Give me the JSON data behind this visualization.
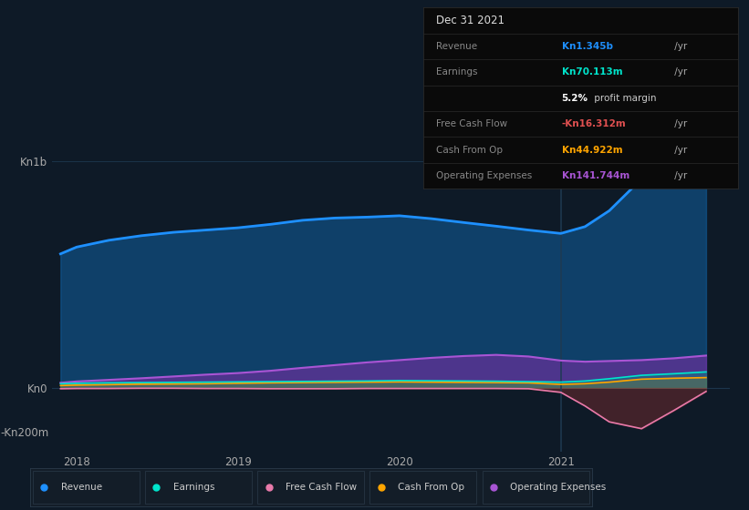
{
  "bg_color": "#0e1a27",
  "plot_bg_color": "#0e1a27",
  "info_box": {
    "title": "Dec 31 2021",
    "rows": [
      {
        "label": "Revenue",
        "value": "Kn1.345b",
        "suffix": " /yr",
        "value_color": "#1e90ff"
      },
      {
        "label": "Earnings",
        "value": "Kn70.113m",
        "suffix": " /yr",
        "value_color": "#00e5cc"
      },
      {
        "label": "",
        "value": "5.2%",
        "suffix": " profit margin",
        "value_color": "#ffffff"
      },
      {
        "label": "Free Cash Flow",
        "value": "-Kn16.312m",
        "suffix": " /yr",
        "value_color": "#e05050"
      },
      {
        "label": "Cash From Op",
        "value": "Kn44.922m",
        "suffix": " /yr",
        "value_color": "#ffa500"
      },
      {
        "label": "Operating Expenses",
        "value": "Kn141.744m",
        "suffix": " /yr",
        "value_color": "#a855d4"
      }
    ],
    "bg_color": "#0a0a0a",
    "border_color": "#2a2a2a",
    "title_color": "#dddddd",
    "label_color": "#888888"
  },
  "legend": [
    {
      "label": "Revenue",
      "color": "#1e90ff"
    },
    {
      "label": "Earnings",
      "color": "#00e5cc"
    },
    {
      "label": "Free Cash Flow",
      "color": "#e87aaa"
    },
    {
      "label": "Cash From Op",
      "color": "#ffa500"
    },
    {
      "label": "Operating Expenses",
      "color": "#a855d4"
    }
  ],
  "x_ticks": [
    2018,
    2019,
    2020,
    2021
  ],
  "ylim_top": 1450,
  "ylim_bottom": -280,
  "series": {
    "x": [
      2017.9,
      2018.0,
      2018.2,
      2018.4,
      2018.6,
      2018.8,
      2019.0,
      2019.2,
      2019.4,
      2019.6,
      2019.8,
      2020.0,
      2020.2,
      2020.4,
      2020.6,
      2020.8,
      2021.0,
      2021.15,
      2021.3,
      2021.5,
      2021.7,
      2021.9
    ],
    "revenue": [
      590,
      620,
      650,
      670,
      685,
      695,
      705,
      720,
      738,
      748,
      752,
      758,
      745,
      728,
      712,
      695,
      680,
      710,
      780,
      920,
      1100,
      1345
    ],
    "earnings": [
      18,
      20,
      22,
      23,
      24,
      25,
      26,
      27,
      28,
      29,
      30,
      32,
      31,
      30,
      29,
      27,
      25,
      30,
      40,
      55,
      62,
      70
    ],
    "free_cash_flow": [
      -4,
      -3,
      -3,
      -2,
      -2,
      -3,
      -3,
      -4,
      -4,
      -4,
      -3,
      -3,
      -3,
      -3,
      -3,
      -4,
      -20,
      -80,
      -150,
      -180,
      -100,
      -16
    ],
    "cash_from_op": [
      10,
      12,
      14,
      16,
      17,
      18,
      20,
      22,
      23,
      24,
      25,
      26,
      25,
      24,
      23,
      22,
      15,
      18,
      25,
      38,
      42,
      45
    ],
    "op_expenses": [
      22,
      28,
      35,
      42,
      50,
      58,
      65,
      75,
      88,
      100,
      112,
      122,
      132,
      140,
      145,
      138,
      120,
      115,
      118,
      122,
      130,
      142
    ]
  },
  "vertical_line_x": 2021.0,
  "vertical_line_color": "#1e3a52"
}
